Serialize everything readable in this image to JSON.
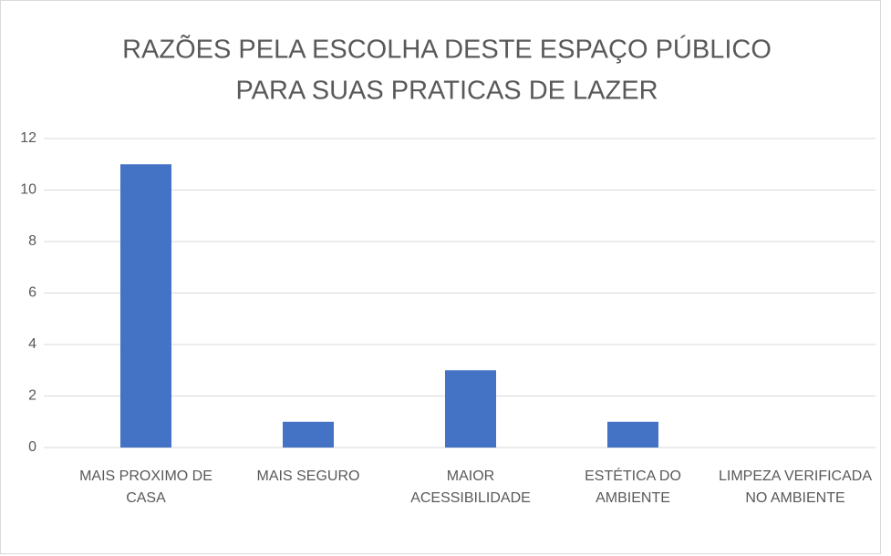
{
  "chart_data": {
    "type": "bar",
    "title": [
      "RAZÕES PELA ESCOLHA DESTE ESPAÇO PÚBLICO",
      "PARA SUAS PRATICAS DE LAZER"
    ],
    "categories": [
      "MAIS PROXIMO DE CASA",
      "MAIS SEGURO",
      "MAIOR ACESSIBILIDADE",
      "ESTÉTICA DO AMBIENTE",
      "LIMPEZA VERIFICADA NO AMBIENTE"
    ],
    "values": [
      11,
      1,
      3,
      1,
      0
    ],
    "color": "#4472c4",
    "ylim": [
      0,
      12
    ],
    "yticks": [
      0,
      2,
      4,
      6,
      8,
      10,
      12
    ],
    "grid": true
  }
}
